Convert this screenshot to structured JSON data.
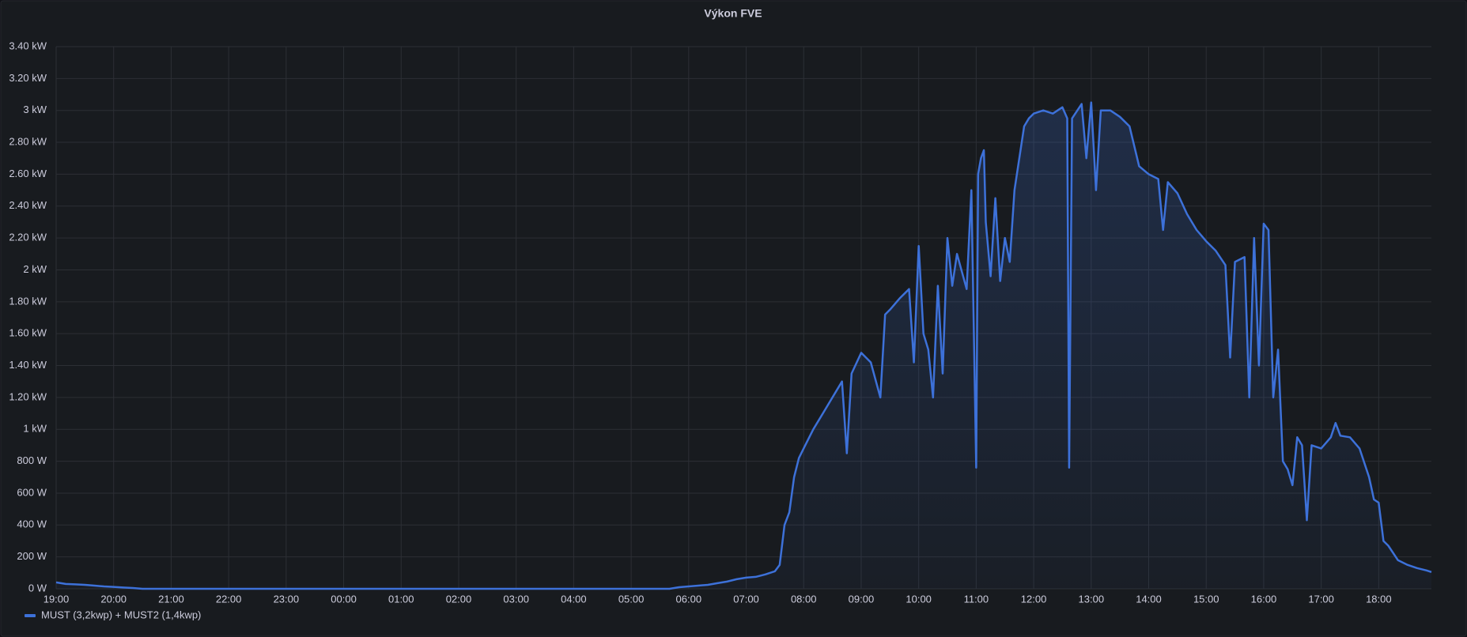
{
  "chart_data": {
    "type": "line",
    "title": "Výkon FVE",
    "x": [
      "19:00",
      "19:10",
      "19:20",
      "19:30",
      "19:40",
      "19:50",
      "20:00",
      "20:10",
      "20:20",
      "20:30",
      "05:40",
      "05:50",
      "06:00",
      "06:10",
      "06:20",
      "06:30",
      "06:40",
      "06:50",
      "07:00",
      "07:10",
      "07:20",
      "07:30",
      "07:35",
      "07:40",
      "07:45",
      "07:50",
      "07:55",
      "08:00",
      "08:10",
      "08:20",
      "08:30",
      "08:40",
      "08:45",
      "08:50",
      "09:00",
      "09:10",
      "09:20",
      "09:25",
      "09:30",
      "09:40",
      "09:50",
      "09:55",
      "10:00",
      "10:05",
      "10:10",
      "10:15",
      "10:20",
      "10:25",
      "10:30",
      "10:35",
      "10:40",
      "10:50",
      "10:55",
      "11:00",
      "11:02",
      "11:05",
      "11:08",
      "11:10",
      "11:15",
      "11:20",
      "11:25",
      "11:30",
      "11:35",
      "11:40",
      "11:50",
      "11:55",
      "12:00",
      "12:10",
      "12:20",
      "12:30",
      "12:35",
      "12:37",
      "12:40",
      "12:50",
      "12:55",
      "13:00",
      "13:05",
      "13:10",
      "13:20",
      "13:30",
      "13:40",
      "13:50",
      "14:00",
      "14:10",
      "14:15",
      "14:20",
      "14:30",
      "14:40",
      "14:50",
      "15:00",
      "15:10",
      "15:20",
      "15:25",
      "15:30",
      "15:40",
      "15:45",
      "15:50",
      "15:55",
      "16:00",
      "16:05",
      "16:10",
      "16:15",
      "16:20",
      "16:25",
      "16:30",
      "16:35",
      "16:40",
      "16:45",
      "16:50",
      "17:00",
      "17:10",
      "17:15",
      "17:20",
      "17:30",
      "17:40",
      "17:50",
      "17:55",
      "18:00",
      "18:05",
      "18:10",
      "18:20",
      "18:30",
      "18:40",
      "18:50",
      "18:55"
    ],
    "series": [
      {
        "name": "MUST (3,2kwp) + MUST2 (1,4kwp)",
        "color": "#3d71d9",
        "values": [
          40,
          30,
          28,
          25,
          20,
          15,
          12,
          8,
          5,
          0,
          0,
          10,
          15,
          20,
          25,
          35,
          45,
          60,
          70,
          75,
          90,
          110,
          150,
          400,
          480,
          700,
          820,
          880,
          1000,
          1100,
          1200,
          1300,
          850,
          1350,
          1480,
          1420,
          1200,
          1720,
          1750,
          1820,
          1880,
          1420,
          2150,
          1600,
          1500,
          1200,
          1900,
          1350,
          2200,
          1900,
          2100,
          1880,
          2500,
          760,
          2600,
          2700,
          2750,
          2300,
          1960,
          2450,
          1930,
          2200,
          2050,
          2500,
          2900,
          2950,
          2980,
          3000,
          2980,
          3020,
          2950,
          760,
          2950,
          3040,
          2700,
          3050,
          2500,
          3000,
          3000,
          2960,
          2900,
          2650,
          2600,
          2570,
          2250,
          2550,
          2480,
          2350,
          2250,
          2180,
          2120,
          2030,
          1450,
          2050,
          2080,
          1200,
          2200,
          1400,
          2290,
          2250,
          1200,
          1500,
          800,
          750,
          650,
          950,
          900,
          430,
          900,
          880,
          950,
          1040,
          960,
          950,
          880,
          700,
          560,
          540,
          300,
          270,
          180,
          150,
          130,
          115,
          105
        ]
      }
    ],
    "xlim": [
      "19:00",
      "18:55"
    ],
    "xticks": [
      "19:00",
      "20:00",
      "21:00",
      "22:00",
      "23:00",
      "00:00",
      "01:00",
      "02:00",
      "03:00",
      "04:00",
      "05:00",
      "06:00",
      "07:00",
      "08:00",
      "09:00",
      "10:00",
      "11:00",
      "12:00",
      "13:00",
      "14:00",
      "15:00",
      "16:00",
      "17:00",
      "18:00"
    ],
    "ylim": [
      0,
      3400
    ],
    "yticks": [
      {
        "value": 0,
        "label": "0 W"
      },
      {
        "value": 200,
        "label": "200 W"
      },
      {
        "value": 400,
        "label": "400 W"
      },
      {
        "value": 600,
        "label": "600 W"
      },
      {
        "value": 800,
        "label": "800 W"
      },
      {
        "value": 1000,
        "label": "1 kW"
      },
      {
        "value": 1200,
        "label": "1.20 kW"
      },
      {
        "value": 1400,
        "label": "1.40 kW"
      },
      {
        "value": 1600,
        "label": "1.60 kW"
      },
      {
        "value": 1800,
        "label": "1.80 kW"
      },
      {
        "value": 2000,
        "label": "2 kW"
      },
      {
        "value": 2200,
        "label": "2.20 kW"
      },
      {
        "value": 2400,
        "label": "2.40 kW"
      },
      {
        "value": 2600,
        "label": "2.60 kW"
      },
      {
        "value": 2800,
        "label": "2.80 kW"
      },
      {
        "value": 3000,
        "label": "3 kW"
      },
      {
        "value": 3200,
        "label": "3.20 kW"
      },
      {
        "value": 3400,
        "label": "3.40 kW"
      }
    ],
    "grid": true,
    "legend": "bottom-left"
  }
}
